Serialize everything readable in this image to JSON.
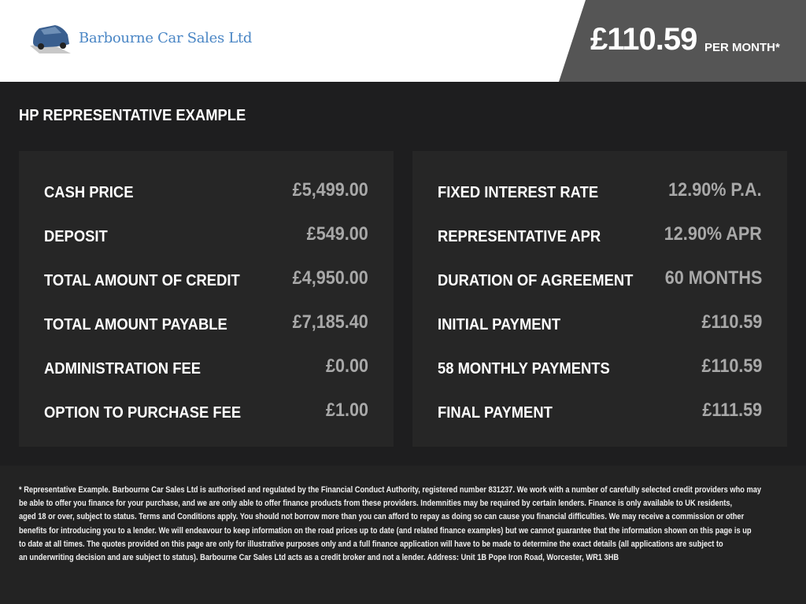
{
  "header": {
    "brand": "Barbourne Car Sales Ltd",
    "monthly_price": "£110.59",
    "per_month_label": "PER MONTH*"
  },
  "section_title": "HP REPRESENTATIVE EXAMPLE",
  "left_panel": [
    {
      "label": "CASH PRICE",
      "value": "£5,499.00"
    },
    {
      "label": "DEPOSIT",
      "value": "£549.00"
    },
    {
      "label": "TOTAL AMOUNT OF CREDIT",
      "value": "£4,950.00"
    },
    {
      "label": "TOTAL AMOUNT PAYABLE",
      "value": "£7,185.40"
    },
    {
      "label": "ADMINISTRATION FEE",
      "value": "£0.00"
    },
    {
      "label": "OPTION TO PURCHASE FEE",
      "value": "£1.00"
    }
  ],
  "right_panel": [
    {
      "label": "FIXED INTEREST RATE",
      "value": "12.90% P.A."
    },
    {
      "label": "REPRESENTATIVE APR",
      "value": "12.90% APR"
    },
    {
      "label": "DURATION OF AGREEMENT",
      "value": "60 MONTHS"
    },
    {
      "label": "INITIAL PAYMENT",
      "value": "£110.59"
    },
    {
      "label": "58 MONTHLY PAYMENTS",
      "value": "£110.59"
    },
    {
      "label": "FINAL PAYMENT",
      "value": "£111.59"
    }
  ],
  "disclaimer": [
    "* Representative Example. Barbourne Car Sales Ltd is authorised and regulated by the Financial Conduct Authority, registered number 831237. We work with a number of carefully selected credit providers who may",
    "be able to offer you finance for your purchase, and we are only able to offer finance products from these providers. Indemnities may be required by certain lenders. Finance is only available to UK residents,",
    "aged 18 or over, subject to status. Terms and Conditions apply. You should not borrow more than you can afford to repay as doing so can cause you financial difficulties. We may receive a commission or other",
    "benefits for introducing you to a lender. We will endeavour to keep information on the road prices up to date (and related finance examples) but we cannot guarantee that the information shown on this page is up",
    "to date at all times. The quotes provided on this page are only for illustrative purposes only and a full finance application will have to be made to determine the exact details (all applications are subject to",
    "an underwriting decision and are subject to status). Barbourne Car Sales Ltd acts as a credit broker and not a lender. Address: Unit 1B Pope Iron Road, Worcester, WR1 3HB"
  ]
}
